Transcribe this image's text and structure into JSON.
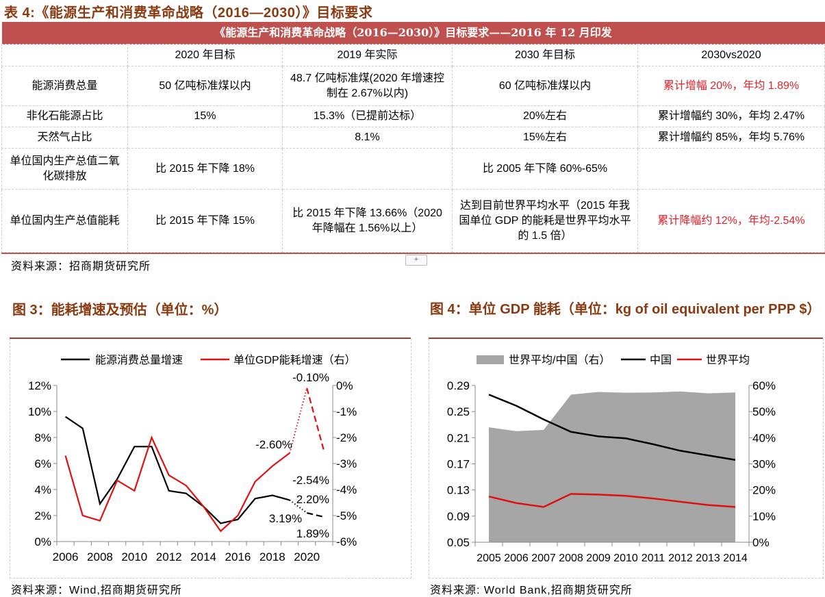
{
  "title": "表 4:《能源生产和消费革命战略（2016—2030）》目标要求",
  "table": {
    "band": "《能源生产和消费革命战略（2016—2030）》目标要求——2016 年 12 月印发",
    "headers": [
      "",
      "2020 年目标",
      "2019 年实际",
      "2030 年目标",
      "2030vs2020"
    ],
    "rows": [
      [
        "能源消费总量",
        "50 亿吨标准煤以内",
        "48.7 亿吨标准煤(2020 年增速控制在 2.67%以内)",
        "60 亿吨标准煤以内",
        "累计增幅 20%，年均 1.89%"
      ],
      [
        "非化石能源占比",
        "15%",
        "15.3%（已提前达标）",
        "20%左右",
        "累计增幅约 30%，年均 2.47%"
      ],
      [
        "天然气占比",
        "",
        "8.1%",
        "15%左右",
        "累计增幅约 85%，年均 5.76%"
      ],
      [
        "单位国内生产总值二氧化碳排放",
        "比 2015 年下降 18%",
        "",
        "比 2005 年下降 60%-65%",
        ""
      ],
      [
        "单位国内生产总值能耗",
        "比 2015 年下降 15%",
        "比 2015 年下降 13.66%（2020 年降幅在 1.56%以上）",
        "达到目前世界平均水平（2015 年我国单位 GDP 的能耗是世界平均水平的 1.5 倍）",
        "累计降幅约 12%，年均-2.54%"
      ]
    ],
    "highlight_color": "#e0202a",
    "band_color": "#c0504d"
  },
  "table_source": "资料来源：招商期货研究所",
  "expand_button": "+",
  "chart_data": [
    {
      "type": "line",
      "title": "图 3：能耗增速及预估（单位：%）",
      "source": "资料来源：Wind,招商期货研究所",
      "x": [
        2006,
        2007,
        2008,
        2009,
        2010,
        2011,
        2012,
        2013,
        2014,
        2015,
        2016,
        2017,
        2018,
        2019,
        2020,
        2021
      ],
      "xticks": [
        "2006",
        "2008",
        "2010",
        "2012",
        "2014",
        "2016",
        "2018",
        "2020"
      ],
      "y_left": {
        "ticks": [
          "0%",
          "2%",
          "4%",
          "6%",
          "8%",
          "10%",
          "12%"
        ],
        "range": [
          0,
          12
        ]
      },
      "y_right": {
        "ticks": [
          "-6%",
          "-5%",
          "-4%",
          "-3%",
          "-2%",
          "-1%",
          "0%"
        ],
        "range": [
          -6,
          0
        ]
      },
      "series": [
        {
          "name": "能源消费总量增速",
          "axis": "left",
          "color": "#000000",
          "values": [
            9.6,
            8.7,
            2.9,
            4.8,
            7.3,
            7.3,
            3.9,
            3.7,
            2.7,
            1.4,
            1.7,
            3.3,
            3.55,
            3.19,
            2.2,
            1.89
          ]
        },
        {
          "name": "单位GDP能耗增速（右）",
          "axis": "right",
          "color": "#e01010",
          "values": [
            -2.7,
            -5.0,
            -5.2,
            -3.65,
            -4.05,
            -2.0,
            -3.45,
            -3.85,
            -4.65,
            -5.6,
            -5.0,
            -3.7,
            -3.1,
            -2.6,
            -0.1,
            -2.54
          ]
        }
      ],
      "annotations": [
        "-0.10%",
        "-2.60%",
        "-2.54%",
        "2.20%",
        "3.19%",
        "1.89%"
      ],
      "legend": "top"
    },
    {
      "type": "line",
      "title": "图 4：单位 GDP 能耗（单位：kg of oil equivalent per PPP $）",
      "source": "资料来源: World Bank,招商期货研究所",
      "x": [
        "2005",
        "2006",
        "2007",
        "2008",
        "2009",
        "2010",
        "2011",
        "2012",
        "2013",
        "2014"
      ],
      "y_left": {
        "ticks": [
          "0.05",
          "0.09",
          "0.13",
          "0.17",
          "0.21",
          "0.25",
          "0.29"
        ],
        "range": [
          0.05,
          0.29
        ]
      },
      "y_right": {
        "ticks": [
          "0%",
          "10%",
          "20%",
          "30%",
          "40%",
          "50%",
          "60%"
        ],
        "range": [
          0,
          60
        ]
      },
      "series": [
        {
          "name": "世界平均/中国（右）",
          "type": "area",
          "axis": "right",
          "color": "#a6a6a6",
          "values": [
            44,
            42.5,
            43,
            56.5,
            57.5,
            57.2,
            57.3,
            57.7,
            57,
            57.3
          ]
        },
        {
          "name": "中国",
          "axis": "left",
          "color": "#000000",
          "values": [
            0.276,
            0.259,
            0.238,
            0.219,
            0.212,
            0.209,
            0.2,
            0.19,
            0.183,
            0.176
          ]
        },
        {
          "name": "世界平均",
          "axis": "left",
          "color": "#e01010",
          "values": [
            0.12,
            0.11,
            0.104,
            0.124,
            0.123,
            0.121,
            0.117,
            0.112,
            0.107,
            0.104
          ]
        }
      ],
      "legend": "top"
    }
  ]
}
